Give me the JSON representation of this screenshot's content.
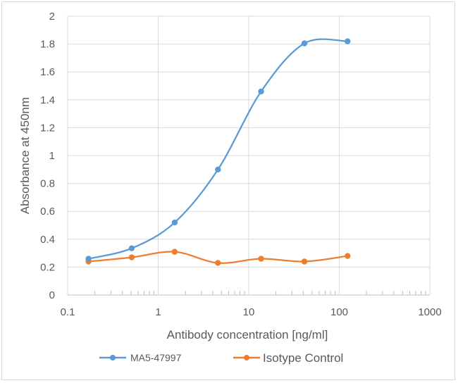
{
  "chart_data": {
    "type": "line",
    "xscale": "log",
    "xlabel": "Antibody concentration [ng/ml]",
    "ylabel": "Absorbance at 450nm",
    "xlim": [
      0.1,
      1000
    ],
    "ylim": [
      0,
      2
    ],
    "xticks": [
      0.1,
      1,
      10,
      100,
      1000
    ],
    "xtick_labels": [
      "0.1",
      "1",
      "10",
      "100",
      "1000"
    ],
    "yticks": [
      0,
      0.2,
      0.4,
      0.6,
      0.8,
      1,
      1.2,
      1.4,
      1.6,
      1.8,
      2
    ],
    "ytick_labels": [
      "0",
      "0.2",
      "0.4",
      "0.6",
      "0.8",
      "1",
      "1.2",
      "1.4",
      "1.6",
      "1.8",
      "2"
    ],
    "grid": true,
    "legend_position": "bottom",
    "series": [
      {
        "name": "MA5-47997",
        "color": "#5b9bd5",
        "x": [
          0.17,
          0.51,
          1.52,
          4.57,
          13.7,
          41.2,
          123.5
        ],
        "y": [
          0.26,
          0.335,
          0.52,
          0.9,
          1.46,
          1.805,
          1.82
        ]
      },
      {
        "name": "Isotype Control",
        "color": "#ed7d31",
        "x": [
          0.17,
          0.51,
          1.52,
          4.57,
          13.7,
          41.2,
          123.5
        ],
        "y": [
          0.24,
          0.27,
          0.31,
          0.23,
          0.26,
          0.24,
          0.28
        ]
      }
    ]
  }
}
